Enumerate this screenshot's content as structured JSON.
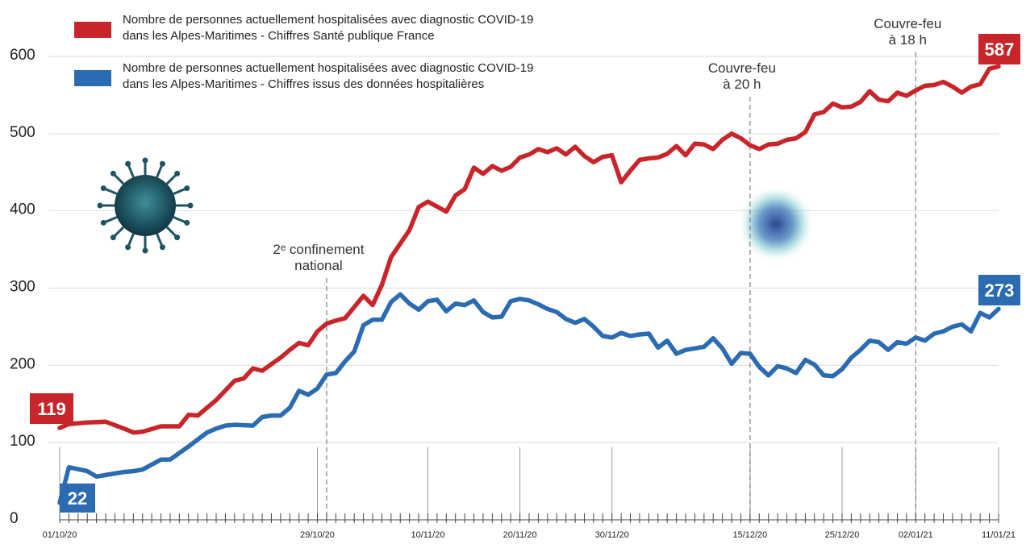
{
  "chart_data": {
    "type": "line",
    "ylim": [
      0,
      620
    ],
    "yticks": [
      0,
      100,
      200,
      300,
      400,
      500,
      600
    ],
    "x_start": "01/10/20",
    "x_end": "11/01/21",
    "x_tick_labels": [
      {
        "date": "2020-10-01",
        "label": "01/10/20"
      },
      {
        "date": "2020-10-29",
        "label": "29/10/20"
      },
      {
        "date": "2020-11-10",
        "label": "10/11/20"
      },
      {
        "date": "2020-11-20",
        "label": "20/11/20"
      },
      {
        "date": "2020-11-30",
        "label": "30/11/20"
      },
      {
        "date": "2020-12-15",
        "label": "15/12/20"
      },
      {
        "date": "2020-12-25",
        "label": "25/12/20"
      },
      {
        "date": "2021-01-02",
        "label": "02/01/21"
      },
      {
        "date": "2021-01-11",
        "label": "11/01/21"
      }
    ],
    "series": [
      {
        "name": "Nombre de personnes actuellement hospitalisées avec diagnostic COVID-19 dans les Alpes-Maritimes - Chiffres Santé publique France",
        "color": "#c8252a",
        "start_label": "119",
        "end_label": "587",
        "points": [
          [
            "2020-10-01",
            119
          ],
          [
            "2020-10-02",
            124
          ],
          [
            "2020-10-04",
            126
          ],
          [
            "2020-10-06",
            127
          ],
          [
            "2020-10-08",
            118
          ],
          [
            "2020-10-09",
            113
          ],
          [
            "2020-10-10",
            114
          ],
          [
            "2020-10-12",
            121
          ],
          [
            "2020-10-14",
            121
          ],
          [
            "2020-10-15",
            136
          ],
          [
            "2020-10-16",
            135
          ],
          [
            "2020-10-18",
            155
          ],
          [
            "2020-10-20",
            180
          ],
          [
            "2020-10-21",
            183
          ],
          [
            "2020-10-22",
            196
          ],
          [
            "2020-10-23",
            193
          ],
          [
            "2020-10-25",
            210
          ],
          [
            "2020-10-26",
            220
          ],
          [
            "2020-10-27",
            229
          ],
          [
            "2020-10-28",
            226
          ],
          [
            "2020-10-29",
            244
          ],
          [
            "2020-10-30",
            254
          ],
          [
            "2020-10-31",
            258
          ],
          [
            "2020-11-01",
            261
          ],
          [
            "2020-11-03",
            290
          ],
          [
            "2020-11-04",
            278
          ],
          [
            "2020-11-05",
            304
          ],
          [
            "2020-11-06",
            340
          ],
          [
            "2020-11-08",
            375
          ],
          [
            "2020-11-09",
            405
          ],
          [
            "2020-11-10",
            412
          ],
          [
            "2020-11-12",
            399
          ],
          [
            "2020-11-13",
            420
          ],
          [
            "2020-11-14",
            428
          ],
          [
            "2020-11-15",
            456
          ],
          [
            "2020-11-16",
            448
          ],
          [
            "2020-11-17",
            458
          ],
          [
            "2020-11-18",
            452
          ],
          [
            "2020-11-19",
            457
          ],
          [
            "2020-11-20",
            469
          ],
          [
            "2020-11-21",
            473
          ],
          [
            "2020-11-22",
            480
          ],
          [
            "2020-11-23",
            476
          ],
          [
            "2020-11-24",
            481
          ],
          [
            "2020-11-25",
            473
          ],
          [
            "2020-11-26",
            483
          ],
          [
            "2020-11-27",
            471
          ],
          [
            "2020-11-28",
            463
          ],
          [
            "2020-11-29",
            470
          ],
          [
            "2020-11-30",
            472
          ],
          [
            "2020-12-01",
            437
          ],
          [
            "2020-12-02",
            452
          ],
          [
            "2020-12-03",
            466
          ],
          [
            "2020-12-04",
            468
          ],
          [
            "2020-12-05",
            469
          ],
          [
            "2020-12-06",
            474
          ],
          [
            "2020-12-07",
            484
          ],
          [
            "2020-12-08",
            472
          ],
          [
            "2020-12-09",
            487
          ],
          [
            "2020-12-10",
            486
          ],
          [
            "2020-12-11",
            480
          ],
          [
            "2020-12-12",
            492
          ],
          [
            "2020-12-13",
            500
          ],
          [
            "2020-12-14",
            494
          ],
          [
            "2020-12-15",
            485
          ],
          [
            "2020-12-16",
            480
          ],
          [
            "2020-12-17",
            486
          ],
          [
            "2020-12-18",
            487
          ],
          [
            "2020-12-19",
            492
          ],
          [
            "2020-12-20",
            494
          ],
          [
            "2020-12-21",
            502
          ],
          [
            "2020-12-22",
            525
          ],
          [
            "2020-12-23",
            528
          ],
          [
            "2020-12-24",
            539
          ],
          [
            "2020-12-25",
            534
          ],
          [
            "2020-12-26",
            535
          ],
          [
            "2020-12-27",
            541
          ],
          [
            "2020-12-28",
            555
          ],
          [
            "2020-12-29",
            544
          ],
          [
            "2020-12-30",
            542
          ],
          [
            "2020-12-31",
            553
          ],
          [
            "2021-01-01",
            549
          ],
          [
            "2021-01-02",
            556
          ],
          [
            "2021-01-03",
            562
          ],
          [
            "2021-01-04",
            563
          ],
          [
            "2021-01-05",
            567
          ],
          [
            "2021-01-06",
            561
          ],
          [
            "2021-01-07",
            553
          ],
          [
            "2021-01-08",
            561
          ],
          [
            "2021-01-09",
            564
          ],
          [
            "2021-01-10",
            584
          ],
          [
            "2021-01-11",
            587
          ]
        ]
      },
      {
        "name": "Nombre de personnes actuellement hospitalisées avec diagnostic COVID-19 dans les Alpes-Maritimes - Chiffres issus des données hospitalières",
        "color": "#2a6bb1",
        "start_label": "22",
        "end_label": "273",
        "points": [
          [
            "2020-10-01",
            22
          ],
          [
            "2020-10-02",
            68
          ],
          [
            "2020-10-04",
            63
          ],
          [
            "2020-10-05",
            56
          ],
          [
            "2020-10-06",
            58
          ],
          [
            "2020-10-08",
            62
          ],
          [
            "2020-10-09",
            63
          ],
          [
            "2020-10-10",
            65
          ],
          [
            "2020-10-12",
            78
          ],
          [
            "2020-10-13",
            78
          ],
          [
            "2020-10-15",
            95
          ],
          [
            "2020-10-17",
            113
          ],
          [
            "2020-10-18",
            118
          ],
          [
            "2020-10-19",
            122
          ],
          [
            "2020-10-20",
            123
          ],
          [
            "2020-10-22",
            122
          ],
          [
            "2020-10-23",
            133
          ],
          [
            "2020-10-24",
            135
          ],
          [
            "2020-10-25",
            135
          ],
          [
            "2020-10-26",
            145
          ],
          [
            "2020-10-27",
            167
          ],
          [
            "2020-10-28",
            162
          ],
          [
            "2020-10-29",
            170
          ],
          [
            "2020-10-30",
            188
          ],
          [
            "2020-10-31",
            190
          ],
          [
            "2020-11-01",
            205
          ],
          [
            "2020-11-02",
            218
          ],
          [
            "2020-11-03",
            252
          ],
          [
            "2020-11-04",
            259
          ],
          [
            "2020-11-05",
            259
          ],
          [
            "2020-11-06",
            282
          ],
          [
            "2020-11-07",
            292
          ],
          [
            "2020-11-08",
            280
          ],
          [
            "2020-11-09",
            272
          ],
          [
            "2020-11-10",
            283
          ],
          [
            "2020-11-11",
            285
          ],
          [
            "2020-11-12",
            270
          ],
          [
            "2020-11-13",
            280
          ],
          [
            "2020-11-14",
            278
          ],
          [
            "2020-11-15",
            284
          ],
          [
            "2020-11-16",
            269
          ],
          [
            "2020-11-17",
            262
          ],
          [
            "2020-11-18",
            263
          ],
          [
            "2020-11-19",
            283
          ],
          [
            "2020-11-20",
            286
          ],
          [
            "2020-11-21",
            284
          ],
          [
            "2020-11-22",
            279
          ],
          [
            "2020-11-23",
            273
          ],
          [
            "2020-11-24",
            269
          ],
          [
            "2020-11-25",
            260
          ],
          [
            "2020-11-26",
            255
          ],
          [
            "2020-11-27",
            260
          ],
          [
            "2020-11-28",
            250
          ],
          [
            "2020-11-29",
            238
          ],
          [
            "2020-11-30",
            236
          ],
          [
            "2020-12-01",
            242
          ],
          [
            "2020-12-02",
            238
          ],
          [
            "2020-12-03",
            240
          ],
          [
            "2020-12-04",
            241
          ],
          [
            "2020-12-05",
            223
          ],
          [
            "2020-12-06",
            232
          ],
          [
            "2020-12-07",
            215
          ],
          [
            "2020-12-08",
            220
          ],
          [
            "2020-12-09",
            222
          ],
          [
            "2020-12-10",
            224
          ],
          [
            "2020-12-11",
            235
          ],
          [
            "2020-12-12",
            222
          ],
          [
            "2020-12-13",
            202
          ],
          [
            "2020-12-14",
            216
          ],
          [
            "2020-12-15",
            215
          ],
          [
            "2020-12-16",
            198
          ],
          [
            "2020-12-17",
            187
          ],
          [
            "2020-12-18",
            199
          ],
          [
            "2020-12-19",
            196
          ],
          [
            "2020-12-20",
            190
          ],
          [
            "2020-12-21",
            207
          ],
          [
            "2020-12-22",
            201
          ],
          [
            "2020-12-23",
            187
          ],
          [
            "2020-12-24",
            186
          ],
          [
            "2020-12-25",
            195
          ],
          [
            "2020-12-26",
            210
          ],
          [
            "2020-12-27",
            220
          ],
          [
            "2020-12-28",
            232
          ],
          [
            "2020-12-29",
            230
          ],
          [
            "2020-12-30",
            220
          ],
          [
            "2020-12-31",
            230
          ],
          [
            "2021-01-01",
            228
          ],
          [
            "2021-01-02",
            236
          ],
          [
            "2021-01-03",
            232
          ],
          [
            "2021-01-04",
            241
          ],
          [
            "2021-01-05",
            244
          ],
          [
            "2021-01-06",
            250
          ],
          [
            "2021-01-07",
            253
          ],
          [
            "2021-01-08",
            244
          ],
          [
            "2021-01-09",
            268
          ],
          [
            "2021-01-10",
            262
          ],
          [
            "2021-01-11",
            273
          ]
        ]
      }
    ],
    "annotations": [
      {
        "date": "2020-10-30",
        "lines": [
          "2ᵉ confinement",
          "national"
        ]
      },
      {
        "date": "2020-12-15",
        "lines": [
          "Couvre-feu",
          "à 20 h"
        ]
      },
      {
        "date": "2021-01-02",
        "lines": [
          "Couvre-feu",
          "à 18 h"
        ]
      }
    ],
    "legend": [
      {
        "color": "#c8252a",
        "lines": [
          "Nombre de personnes actuellement hospitalisées avec diagnostic COVID-19",
          "dans les Alpes-Maritimes - Chiffres Santé publique France"
        ]
      },
      {
        "color": "#2a6bb1",
        "lines": [
          "Nombre de personnes actuellement hospitalisées avec diagnostic COVID-19",
          "dans les Alpes-Maritimes - Chiffres issus des données hospitalières"
        ]
      }
    ]
  }
}
